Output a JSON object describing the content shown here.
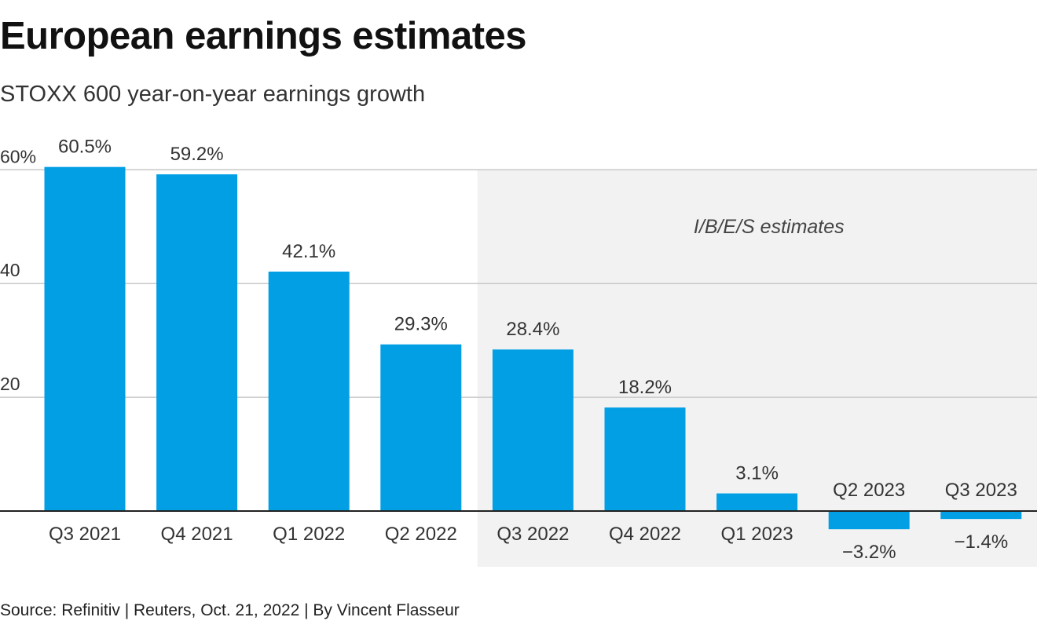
{
  "header": {
    "title": "European earnings estimates",
    "subtitle": "STOXX 600 year-on-year earnings growth"
  },
  "footer": {
    "source": "Source: Refinitiv | Reuters, Oct. 21, 2022 | By Vincent Flasseur"
  },
  "colors": {
    "bar": "#039fe5",
    "shade": "#f2f2f2",
    "grid": "#c8c8c8",
    "baseline": "#222222"
  },
  "chart_data": {
    "type": "bar",
    "categories": [
      "Q3 2021",
      "Q4 2021",
      "Q1 2022",
      "Q2 2022",
      "Q3 2022",
      "Q4 2022",
      "Q1 2023",
      "Q2 2023",
      "Q3 2023"
    ],
    "values": [
      60.5,
      59.2,
      42.1,
      29.3,
      28.4,
      18.2,
      3.1,
      -3.2,
      -1.4
    ],
    "value_labels": [
      "60.5%",
      "59.2%",
      "42.1%",
      "29.3%",
      "28.4%",
      "18.2%",
      "3.1%",
      "−3.2%",
      "−1.4%"
    ],
    "yticks": [
      {
        "value": 60,
        "label": "60%"
      },
      {
        "value": 40,
        "label": "40"
      },
      {
        "value": 20,
        "label": "20"
      }
    ],
    "ylim": [
      -8,
      62
    ],
    "grid": true,
    "shaded_region": {
      "label": "I/B/E/S estimates",
      "from_category": "Q3 2022",
      "to_category": "Q3 2023"
    }
  }
}
